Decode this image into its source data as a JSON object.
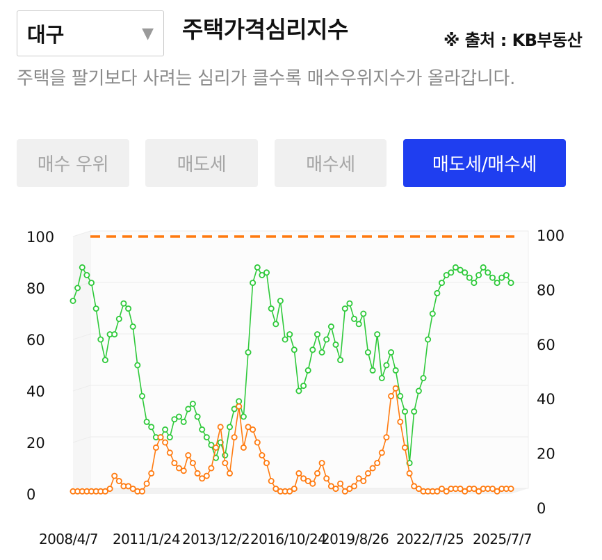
{
  "region_select": {
    "value": "대구",
    "chevron_icon": "chevron-down-icon"
  },
  "title": "주택가격심리지수",
  "source": "※ 출처 : KB부동산",
  "description": "주택을 팔기보다 사려는 심리가 클수록 매수우위지수가 올라갑니다.",
  "tabs": [
    {
      "label": "매수 우위",
      "active": false
    },
    {
      "label": "매도세",
      "active": false
    },
    {
      "label": "매수세",
      "active": false
    },
    {
      "label": "매도세/매수세",
      "active": true
    }
  ],
  "colors": {
    "green": "#2ec93a",
    "orange": "#ff7a0f",
    "accent": "#1f3ef0",
    "reference": "#ff7a0f"
  },
  "chart_data": {
    "type": "line",
    "x_tick_labels": [
      "2008/4/7",
      "2011/1/24",
      "2013/12/2",
      "2016/10/24",
      "2019/8/26",
      "2022/7/25",
      "2025/7/7"
    ],
    "y_left_ticks": [
      "100",
      "80",
      "60",
      "40",
      "20",
      "0"
    ],
    "y_right_ticks": [
      "100",
      "80",
      "60",
      "40",
      "20",
      "0"
    ],
    "ylim": [
      0,
      100
    ],
    "reference_line": 100,
    "grid": true,
    "series": [
      {
        "color": "green",
        "values": [
          75,
          80,
          88,
          85,
          82,
          72,
          60,
          52,
          62,
          62,
          68,
          74,
          72,
          65,
          50,
          38,
          28,
          26,
          22,
          22,
          25,
          22,
          29,
          30,
          28,
          33,
          35,
          30,
          25,
          22,
          19,
          14,
          20,
          15,
          26,
          33,
          36,
          30,
          55,
          82,
          88,
          85,
          86,
          72,
          66,
          75,
          60,
          62,
          56,
          40,
          42,
          48,
          56,
          62,
          55,
          60,
          65,
          58,
          52,
          72,
          74,
          68,
          66,
          70,
          55,
          48,
          62,
          45,
          50,
          55,
          48,
          38,
          32,
          12,
          32,
          40,
          45,
          60,
          70,
          78,
          82,
          85,
          86,
          88,
          87,
          86,
          84,
          82,
          85,
          88,
          86,
          84,
          82,
          84,
          85,
          82
        ]
      },
      {
        "color": "orange",
        "values": [
          1,
          1,
          1,
          1,
          1,
          1,
          1,
          1,
          2,
          7,
          5,
          3,
          3,
          2,
          1,
          1,
          4,
          8,
          18,
          22,
          20,
          16,
          12,
          10,
          9,
          15,
          12,
          8,
          6,
          7,
          10,
          18,
          26,
          12,
          8,
          22,
          34,
          18,
          26,
          25,
          20,
          15,
          12,
          5,
          2,
          1,
          1,
          1,
          2,
          8,
          6,
          5,
          4,
          8,
          12,
          6,
          3,
          2,
          4,
          1,
          2,
          3,
          6,
          5,
          8,
          10,
          12,
          16,
          22,
          38,
          41,
          28,
          18,
          8,
          3,
          2,
          1,
          1,
          1,
          1,
          2,
          1,
          2,
          2,
          2,
          1,
          2,
          2,
          1,
          2,
          2,
          2,
          1,
          2,
          2,
          2
        ]
      }
    ]
  }
}
